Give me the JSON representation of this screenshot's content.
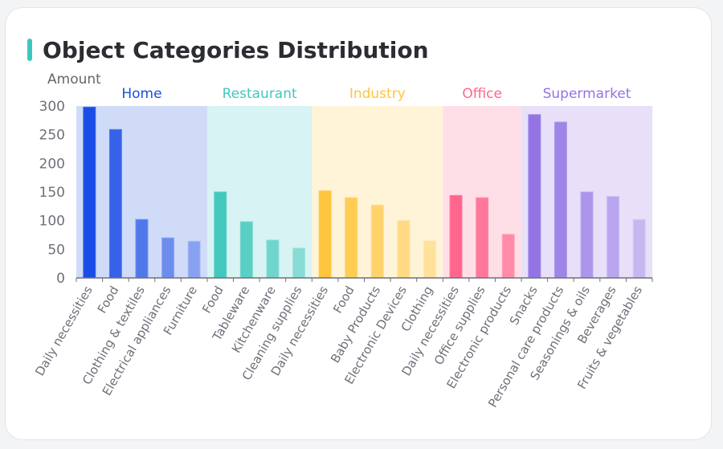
{
  "title": "Object Categories Distribution",
  "accent_color": "#3ec7bd",
  "chart_data": {
    "type": "bar",
    "ylabel": "Amount",
    "xlabel": "",
    "ylim": [
      0,
      300
    ],
    "yticks": [
      0,
      50,
      100,
      150,
      200,
      250,
      300
    ],
    "grid": false,
    "groups": [
      {
        "name": "Home",
        "color": "#1a4de5",
        "band": "#d0dbf8",
        "categories": [
          "Daily necessities",
          "Food",
          "Clothing & textiles",
          "Electrical appliances",
          "Furniture"
        ],
        "values": [
          298,
          259,
          102,
          70,
          64
        ]
      },
      {
        "name": "Restaurant",
        "color": "#43c8bd",
        "band": "#d8f3f3",
        "categories": [
          "Food",
          "Tableware",
          "Kitchenware",
          "Cleaning supplies"
        ],
        "values": [
          150,
          98,
          66,
          52
        ]
      },
      {
        "name": "Industry",
        "color": "#ffc53d",
        "band": "#fff3d8",
        "categories": [
          "Daily necessities",
          "Food",
          "Baby Products",
          "Electronic Devices",
          "Clothing"
        ],
        "values": [
          152,
          140,
          127,
          100,
          65
        ]
      },
      {
        "name": "Office",
        "color": "#ff668d",
        "band": "#ffdfe7",
        "categories": [
          "Daily necessities",
          "Office supplies",
          "Electronic products"
        ],
        "values": [
          144,
          140,
          76
        ]
      },
      {
        "name": "Supermarket",
        "color": "#9274e5",
        "band": "#e7e0f8",
        "categories": [
          "Snacks",
          "Personal care products",
          "Seasonings & oils",
          "Beverages",
          "Fruits & vegetables"
        ],
        "values": [
          285,
          272,
          150,
          142,
          102
        ]
      }
    ]
  }
}
